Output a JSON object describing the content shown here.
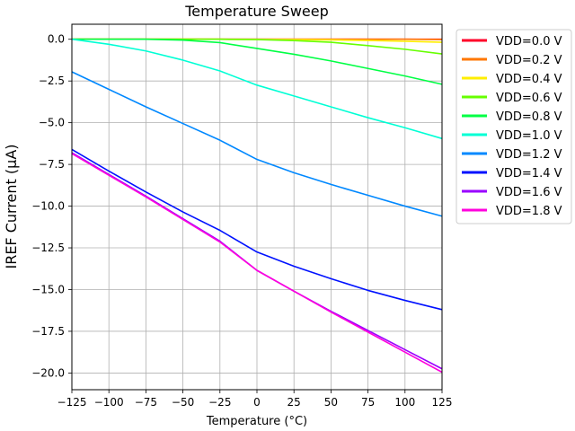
{
  "chart_data": {
    "type": "line",
    "title": "Temperature Sweep",
    "xlabel": "Temperature (°C)",
    "ylabel": "IREF Current (µA)",
    "xlim": [
      -125,
      125
    ],
    "ylim": [
      -21,
      0.9
    ],
    "grid": true,
    "legend_position": "outside-right",
    "x": [
      -125,
      -100,
      -75,
      -50,
      -25,
      0,
      25,
      50,
      75,
      100,
      125
    ],
    "x_ticks": [
      -125,
      -100,
      -75,
      -50,
      -25,
      0,
      25,
      50,
      75,
      100,
      125
    ],
    "x_tick_labels": [
      "−125",
      "−100",
      "−75",
      "−50",
      "−25",
      "0",
      "25",
      "50",
      "75",
      "100",
      "125"
    ],
    "y_ticks": [
      0,
      -2.5,
      -5,
      -7.5,
      -10,
      -12.5,
      -15,
      -17.5,
      -20
    ],
    "y_tick_labels": [
      "0.0",
      "−2.5",
      "−5.0",
      "−7.5",
      "−10.0",
      "−12.5",
      "−15.0",
      "−17.5",
      "−20.0"
    ],
    "series": [
      {
        "name": "VDD=0.0 V",
        "color": "#ff0029",
        "values": [
          0,
          0,
          0,
          0,
          0,
          0,
          0,
          0,
          0,
          0,
          0
        ]
      },
      {
        "name": "VDD=0.2 V",
        "color": "#ff7700",
        "values": [
          0,
          0,
          0,
          0,
          0,
          0,
          0,
          0,
          0,
          0,
          -0.02
        ]
      },
      {
        "name": "VDD=0.4 V",
        "color": "#ffee00",
        "values": [
          0,
          0,
          0,
          0,
          0,
          -0.01,
          -0.02,
          -0.04,
          -0.07,
          -0.12,
          -0.18
        ]
      },
      {
        "name": "VDD=0.6 V",
        "color": "#66ff00",
        "values": [
          0,
          0,
          0,
          0,
          0,
          -0.02,
          -0.08,
          -0.18,
          -0.38,
          -0.6,
          -0.88
        ]
      },
      {
        "name": "VDD=0.8 V",
        "color": "#00ff44",
        "values": [
          0,
          0,
          0,
          -0.05,
          -0.2,
          -0.55,
          -0.9,
          -1.3,
          -1.75,
          -2.2,
          -2.7
        ]
      },
      {
        "name": "VDD=1.0 V",
        "color": "#00ffd5",
        "values": [
          0,
          -0.3,
          -0.7,
          -1.25,
          -1.9,
          -2.75,
          -3.4,
          -4.05,
          -4.7,
          -5.3,
          -5.95
        ]
      },
      {
        "name": "VDD=1.2 V",
        "color": "#0088ff",
        "values": [
          -1.95,
          -3.0,
          -4.05,
          -5.05,
          -6.05,
          -7.2,
          -8.0,
          -8.7,
          -9.35,
          -10.0,
          -10.6
        ]
      },
      {
        "name": "VDD=1.4 V",
        "color": "#0011ff",
        "values": [
          -6.6,
          -7.9,
          -9.15,
          -10.35,
          -11.45,
          -12.75,
          -13.6,
          -14.35,
          -15.05,
          -15.65,
          -16.2
        ]
      },
      {
        "name": "VDD=1.6 V",
        "color": "#9900ff",
        "values": [
          -6.8,
          -8.1,
          -9.4,
          -10.75,
          -12.1,
          -13.85,
          -15.1,
          -16.3,
          -17.45,
          -18.6,
          -19.75
        ]
      },
      {
        "name": "VDD=1.8 V",
        "color": "#ff00dd",
        "values": [
          -6.85,
          -8.15,
          -9.45,
          -10.8,
          -12.15,
          -13.85,
          -15.1,
          -16.35,
          -17.55,
          -18.75,
          -19.95
        ]
      }
    ]
  }
}
